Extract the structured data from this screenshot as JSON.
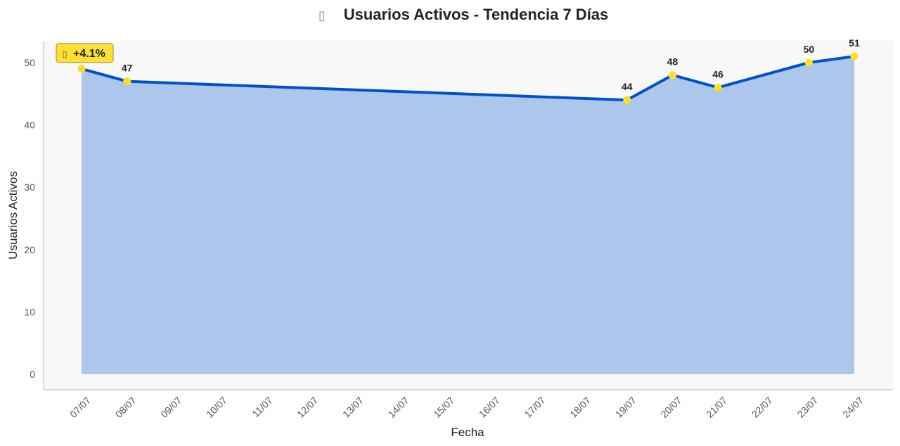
{
  "chart_data": {
    "type": "area",
    "title": "Usuarios Activos - Tendencia 7 Días",
    "title_icon": "chart-icon",
    "xlabel": "Fecha",
    "ylabel": "Usuarios Activos",
    "categories": [
      "07/07",
      "08/07",
      "09/07",
      "10/07",
      "11/07",
      "12/07",
      "13/07",
      "14/07",
      "15/07",
      "16/07",
      "17/07",
      "18/07",
      "19/07",
      "20/07",
      "21/07",
      "22/07",
      "23/07",
      "24/07"
    ],
    "points": [
      {
        "x": "07/07",
        "y": 49,
        "labeled": false
      },
      {
        "x": "08/07",
        "y": 47,
        "labeled": true
      },
      {
        "x": "19/07",
        "y": 44,
        "labeled": true
      },
      {
        "x": "20/07",
        "y": 48,
        "labeled": true
      },
      {
        "x": "21/07",
        "y": 46,
        "labeled": true
      },
      {
        "x": "23/07",
        "y": 50,
        "labeled": true
      },
      {
        "x": "24/07",
        "y": 51,
        "labeled": true
      }
    ],
    "y_ticks": [
      0,
      10,
      20,
      30,
      40,
      50
    ],
    "ylim": [
      0,
      53.5
    ],
    "grid": false,
    "annotation": {
      "text": "+4.1%",
      "icon": "trend-up-icon",
      "at": "07/07"
    },
    "colors": {
      "line": "#0052cc",
      "fill": "#adc6eb",
      "marker": "#ffe01a",
      "badge_bg": "#ffe135",
      "plot_bg": "#f8f8f8",
      "axis": "#c4c4c4"
    }
  }
}
